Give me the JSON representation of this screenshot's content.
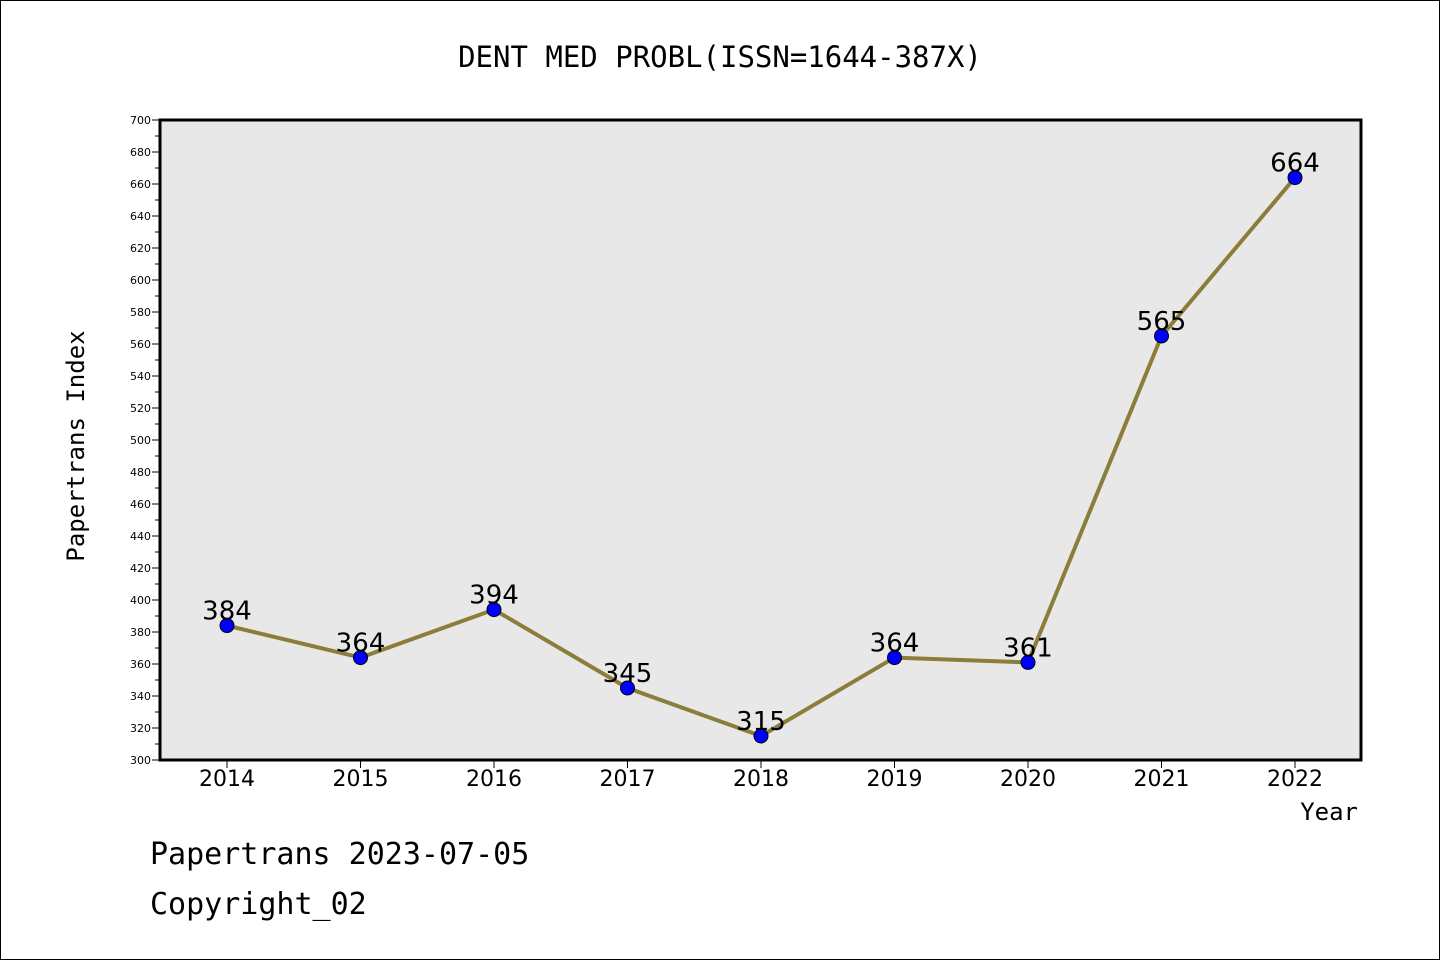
{
  "chart_data": {
    "type": "line",
    "title": "DENT MED PROBL(ISSN=1644-387X)",
    "xlabel": "Year",
    "ylabel": "Papertrans Index",
    "categories": [
      "2014",
      "2015",
      "2016",
      "2017",
      "2018",
      "2019",
      "2020",
      "2021",
      "2022"
    ],
    "values": [
      384,
      364,
      394,
      345,
      315,
      364,
      361,
      565,
      664
    ],
    "data_labels": [
      "384",
      "364",
      "394",
      "345",
      "315",
      "364",
      "361",
      "565",
      "664"
    ],
    "ylim": [
      300,
      700
    ],
    "y_ticks": [
      "300",
      "320",
      "340",
      "360",
      "380",
      "400",
      "420",
      "440",
      "460",
      "480",
      "500",
      "520",
      "540",
      "560",
      "580",
      "600",
      "620",
      "640",
      "660",
      "680",
      "700"
    ],
    "grid": false,
    "line_color": "#8b7d3a",
    "marker_color": "#0000ff",
    "plot_background": "#e8e8e8"
  },
  "footer": {
    "date_line": "Papertrans 2023-07-05",
    "copyright": "Copyright_02"
  }
}
